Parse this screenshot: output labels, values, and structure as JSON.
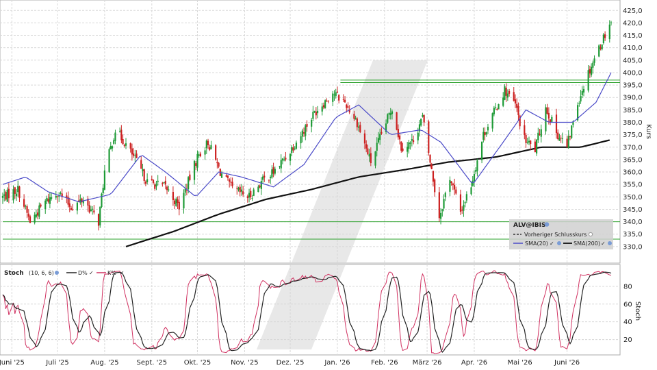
{
  "chart_data": [
    {
      "type": "candlestick",
      "symbol": "ALV@IBIS",
      "ylabel": "Kurs",
      "ylim": [
        325,
        427
      ],
      "y_ticks": [
        "330,0",
        "335,0",
        "340,0",
        "345,0",
        "350,0",
        "355,0",
        "360,0",
        "365,0",
        "370,0",
        "375,0",
        "380,0",
        "385,0",
        "390,0",
        "395,0",
        "400,0",
        "405,0",
        "410,0",
        "415,0",
        "420,0",
        "425,0"
      ],
      "months": [
        "Juni '25",
        "Juli '25",
        "Aug. '25",
        "Sept. '25",
        "Okt. '25",
        "Nov. '25",
        "Dez. '25",
        "Jan. '26",
        "Feb. '26",
        "März '26",
        "Apr. '26",
        "Mai '26",
        "Juni '26"
      ],
      "close_anchors": [
        {
          "date": "2025-05-26",
          "close": 350
        },
        {
          "date": "2025-06-05",
          "close": 353
        },
        {
          "date": "2025-06-13",
          "close": 340
        },
        {
          "date": "2025-06-23",
          "close": 348
        },
        {
          "date": "2025-07-01",
          "close": 352
        },
        {
          "date": "2025-07-10",
          "close": 346
        },
        {
          "date": "2025-07-18",
          "close": 349
        },
        {
          "date": "2025-07-28",
          "close": 340
        },
        {
          "date": "2025-08-01",
          "close": 360
        },
        {
          "date": "2025-08-08",
          "close": 377
        },
        {
          "date": "2025-08-14",
          "close": 372
        },
        {
          "date": "2025-08-21",
          "close": 365
        },
        {
          "date": "2025-08-29",
          "close": 356
        },
        {
          "date": "2025-09-10",
          "close": 354
        },
        {
          "date": "2025-09-19",
          "close": 346
        },
        {
          "date": "2025-10-01",
          "close": 366
        },
        {
          "date": "2025-10-08",
          "close": 372
        },
        {
          "date": "2025-10-16",
          "close": 360
        },
        {
          "date": "2025-10-24",
          "close": 353
        },
        {
          "date": "2025-11-04",
          "close": 350
        },
        {
          "date": "2025-11-12",
          "close": 356
        },
        {
          "date": "2025-11-20",
          "close": 360
        },
        {
          "date": "2025-11-28",
          "close": 366
        },
        {
          "date": "2025-12-08",
          "close": 375
        },
        {
          "date": "2025-12-17",
          "close": 384
        },
        {
          "date": "2025-12-29",
          "close": 392
        },
        {
          "date": "2026-01-06",
          "close": 388
        },
        {
          "date": "2026-01-14",
          "close": 380
        },
        {
          "date": "2026-01-23",
          "close": 364
        },
        {
          "date": "2026-02-02",
          "close": 380
        },
        {
          "date": "2026-02-06",
          "close": 386
        },
        {
          "date": "2026-02-12",
          "close": 370
        },
        {
          "date": "2026-02-19",
          "close": 372
        },
        {
          "date": "2026-02-26",
          "close": 382
        },
        {
          "date": "2026-03-03",
          "close": 364
        },
        {
          "date": "2026-03-09",
          "close": 342
        },
        {
          "date": "2026-03-16",
          "close": 358
        },
        {
          "date": "2026-03-23",
          "close": 344
        },
        {
          "date": "2026-03-30",
          "close": 355
        },
        {
          "date": "2026-04-07",
          "close": 375
        },
        {
          "date": "2026-04-14",
          "close": 384
        },
        {
          "date": "2026-04-21",
          "close": 393
        },
        {
          "date": "2026-04-28",
          "close": 387
        },
        {
          "date": "2026-05-04",
          "close": 373
        },
        {
          "date": "2026-05-11",
          "close": 369
        },
        {
          "date": "2026-05-18",
          "close": 386
        },
        {
          "date": "2026-05-25",
          "close": 376
        },
        {
          "date": "2026-06-01",
          "close": 370
        },
        {
          "date": "2026-06-08",
          "close": 388
        },
        {
          "date": "2026-06-15",
          "close": 400
        },
        {
          "date": "2026-06-22",
          "close": 410
        },
        {
          "date": "2026-06-30",
          "close": 421
        }
      ],
      "sma20_anchors": [
        {
          "date": "2025-05-26",
          "value": 355
        },
        {
          "date": "2025-06-10",
          "value": 358
        },
        {
          "date": "2025-06-25",
          "value": 352
        },
        {
          "date": "2025-07-15",
          "value": 348
        },
        {
          "date": "2025-08-05",
          "value": 351
        },
        {
          "date": "2025-08-25",
          "value": 367
        },
        {
          "date": "2025-09-10",
          "value": 360
        },
        {
          "date": "2025-09-30",
          "value": 350
        },
        {
          "date": "2025-10-15",
          "value": 360
        },
        {
          "date": "2025-10-30",
          "value": 358
        },
        {
          "date": "2025-11-20",
          "value": 354
        },
        {
          "date": "2025-12-10",
          "value": 363
        },
        {
          "date": "2025-12-31",
          "value": 382
        },
        {
          "date": "2026-01-15",
          "value": 387
        },
        {
          "date": "2026-02-05",
          "value": 375
        },
        {
          "date": "2026-02-25",
          "value": 377
        },
        {
          "date": "2026-03-10",
          "value": 372
        },
        {
          "date": "2026-03-31",
          "value": 355
        },
        {
          "date": "2026-04-20",
          "value": 372
        },
        {
          "date": "2026-05-05",
          "value": 385
        },
        {
          "date": "2026-05-20",
          "value": 380
        },
        {
          "date": "2026-06-05",
          "value": 380
        },
        {
          "date": "2026-06-20",
          "value": 388
        },
        {
          "date": "2026-06-30",
          "value": 400
        }
      ],
      "sma200_anchors": [
        {
          "date": "2025-08-15",
          "value": 330
        },
        {
          "date": "2025-09-15",
          "value": 336
        },
        {
          "date": "2025-10-15",
          "value": 343
        },
        {
          "date": "2025-11-15",
          "value": 349
        },
        {
          "date": "2025-12-15",
          "value": 353
        },
        {
          "date": "2026-01-15",
          "value": 358
        },
        {
          "date": "2026-02-15",
          "value": 361
        },
        {
          "date": "2026-03-15",
          "value": 364
        },
        {
          "date": "2026-04-15",
          "value": 366
        },
        {
          "date": "2026-05-15",
          "value": 370
        },
        {
          "date": "2026-06-10",
          "value": 370
        },
        {
          "date": "2026-06-30",
          "value": 373
        }
      ],
      "horizontal_lines": [
        {
          "value": 396,
          "from": "2026-01-03"
        },
        {
          "value": 397,
          "from": "2026-01-03"
        },
        {
          "value": 340,
          "from": "2025-05-26"
        },
        {
          "value": 333,
          "from": "2025-05-26"
        }
      ],
      "legend": {
        "title": "ALV@IBIS",
        "items": [
          "Vorheriger Schlusskurs",
          "SMA(20)",
          "SMA(200)"
        ],
        "placement": "bottom-right"
      },
      "colors": {
        "up": "#1e9a36",
        "down": "#cc2020",
        "sma20": "#4a4ac8",
        "sma200": "#111111",
        "hline": "#2aa02a"
      }
    },
    {
      "type": "line",
      "title": "Stoch",
      "params": "(10, 6, 6)",
      "ylabel": "Stoch",
      "ylim": [
        5,
        100
      ],
      "y_ticks": [
        "20",
        "40",
        "60",
        "80"
      ],
      "series": [
        {
          "name": "D%",
          "color": "#222222"
        },
        {
          "name": "K%",
          "color": "#d03060"
        }
      ]
    }
  ]
}
